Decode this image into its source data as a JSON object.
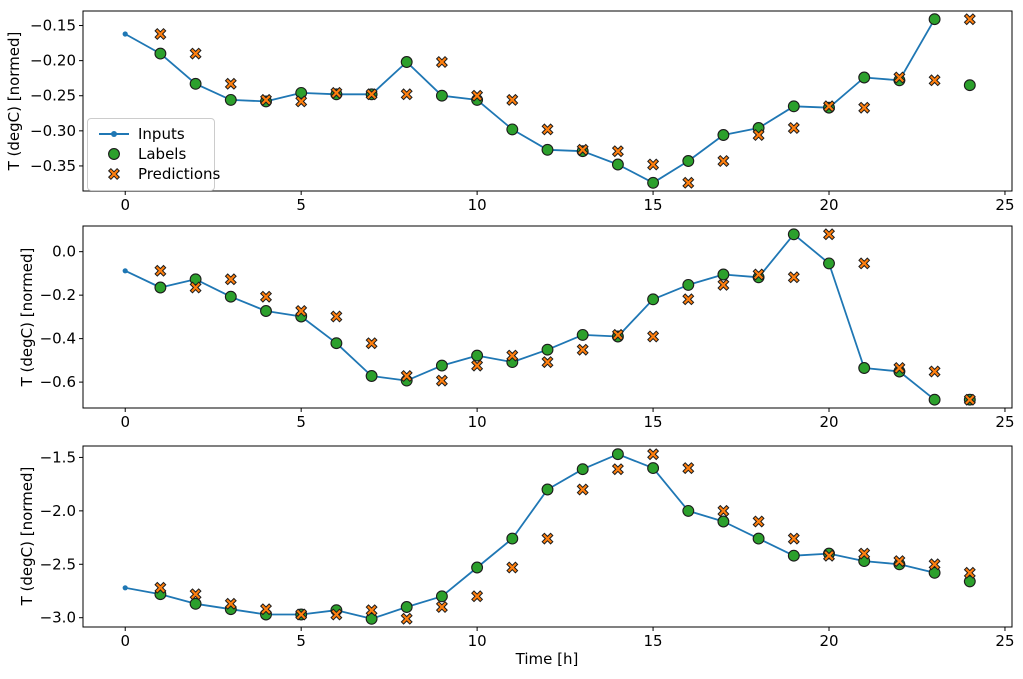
{
  "figure_title": "",
  "legend": {
    "position": "upper-left-of-first-subplot",
    "entries": [
      {
        "label": "Inputs",
        "marker": "line-with-dot",
        "color": "#1f77b4"
      },
      {
        "label": "Labels",
        "marker": "circle",
        "color": "#2ca02c",
        "edge_color": "#000000"
      },
      {
        "label": "Predictions",
        "marker": "x-cross",
        "color": "#ff7f0e",
        "edge_color": "#000000"
      }
    ]
  },
  "colors": {
    "inputs_line": "#1f77b4",
    "labels_marker": "#2ca02c",
    "predictions_marker": "#ff7f0e",
    "marker_edge": "#1c1c1c",
    "axes": "#000000"
  },
  "chart_data": [
    {
      "type": "line",
      "title": "",
      "xlabel": "",
      "ylabel": "T (degC) [normed]",
      "xlim": [
        -1.2,
        25.2
      ],
      "ylim": [
        -0.3857,
        -0.1293
      ],
      "grid": false,
      "xticks": {
        "values": [
          0,
          5,
          10,
          15,
          20,
          25
        ],
        "labels": [
          "0",
          "5",
          "10",
          "15",
          "20",
          "25"
        ]
      },
      "yticks": {
        "values": [
          -0.15,
          -0.2,
          -0.25,
          -0.3,
          -0.35
        ],
        "labels": [
          "−0.15",
          "−0.20",
          "−0.25",
          "−0.30",
          "−0.35"
        ]
      },
      "series": [
        {
          "name": "Inputs",
          "style": "line-with-dots",
          "color": "#1f77b4",
          "x": [
            0,
            1,
            2,
            3,
            4,
            5,
            6,
            7,
            8,
            9,
            10,
            11,
            12,
            13,
            14,
            15,
            16,
            17,
            18,
            19,
            20,
            21,
            22,
            23
          ],
          "y": [
            -0.162,
            -0.19,
            -0.233,
            -0.256,
            -0.258,
            -0.246,
            -0.248,
            -0.248,
            -0.202,
            -0.25,
            -0.256,
            -0.298,
            -0.327,
            -0.329,
            -0.348,
            -0.374,
            -0.343,
            -0.306,
            -0.296,
            -0.265,
            -0.267,
            -0.224,
            -0.228,
            -0.141
          ]
        },
        {
          "name": "Labels",
          "style": "scatter-circle",
          "color": "#2ca02c",
          "x": [
            1,
            2,
            3,
            4,
            5,
            6,
            7,
            8,
            9,
            10,
            11,
            12,
            13,
            14,
            15,
            16,
            17,
            18,
            19,
            20,
            21,
            22,
            23,
            24
          ],
          "y": [
            -0.19,
            -0.233,
            -0.256,
            -0.258,
            -0.246,
            -0.248,
            -0.248,
            -0.202,
            -0.25,
            -0.256,
            -0.298,
            -0.327,
            -0.329,
            -0.348,
            -0.374,
            -0.343,
            -0.306,
            -0.296,
            -0.265,
            -0.267,
            -0.224,
            -0.228,
            -0.141,
            -0.235
          ]
        },
        {
          "name": "Predictions",
          "style": "scatter-x",
          "color": "#ff7f0e",
          "x": [
            1,
            2,
            3,
            4,
            5,
            6,
            7,
            8,
            9,
            10,
            11,
            12,
            13,
            14,
            15,
            16,
            17,
            18,
            19,
            20,
            21,
            22,
            23,
            24
          ],
          "y": [
            -0.162,
            -0.19,
            -0.233,
            -0.256,
            -0.258,
            -0.246,
            -0.248,
            -0.248,
            -0.202,
            -0.25,
            -0.256,
            -0.298,
            -0.327,
            -0.329,
            -0.348,
            -0.374,
            -0.343,
            -0.306,
            -0.296,
            -0.265,
            -0.267,
            -0.224,
            -0.228,
            -0.141
          ]
        }
      ]
    },
    {
      "type": "line",
      "title": "",
      "xlabel": "",
      "ylabel": "T (degC) [normed]",
      "xlim": [
        -1.2,
        25.2
      ],
      "ylim": [
        -0.7191,
        0.1181
      ],
      "grid": false,
      "xticks": {
        "values": [
          0,
          5,
          10,
          15,
          20,
          25
        ],
        "labels": [
          "0",
          "5",
          "10",
          "15",
          "20",
          "25"
        ]
      },
      "yticks": {
        "values": [
          0.0,
          -0.2,
          -0.4,
          -0.6
        ],
        "labels": [
          "0.0",
          "−0.2",
          "−0.4",
          "−0.6"
        ]
      },
      "series": [
        {
          "name": "Inputs",
          "style": "line-with-dots",
          "color": "#1f77b4",
          "x": [
            0,
            1,
            2,
            3,
            4,
            5,
            6,
            7,
            8,
            9,
            10,
            11,
            12,
            13,
            14,
            15,
            16,
            17,
            18,
            19,
            20,
            21,
            22,
            23
          ],
          "y": [
            -0.088,
            -0.165,
            -0.127,
            -0.207,
            -0.273,
            -0.298,
            -0.421,
            -0.572,
            -0.593,
            -0.524,
            -0.478,
            -0.508,
            -0.451,
            -0.383,
            -0.39,
            -0.219,
            -0.153,
            -0.105,
            -0.118,
            0.08,
            -0.054,
            -0.535,
            -0.551,
            -0.681
          ]
        },
        {
          "name": "Labels",
          "style": "scatter-circle",
          "color": "#2ca02c",
          "x": [
            1,
            2,
            3,
            4,
            5,
            6,
            7,
            8,
            9,
            10,
            11,
            12,
            13,
            14,
            15,
            16,
            17,
            18,
            19,
            20,
            21,
            22,
            23,
            24
          ],
          "y": [
            -0.165,
            -0.127,
            -0.207,
            -0.273,
            -0.298,
            -0.421,
            -0.572,
            -0.593,
            -0.524,
            -0.478,
            -0.508,
            -0.451,
            -0.383,
            -0.39,
            -0.219,
            -0.153,
            -0.105,
            -0.118,
            0.08,
            -0.054,
            -0.535,
            -0.551,
            -0.681,
            -0.681
          ]
        },
        {
          "name": "Predictions",
          "style": "scatter-x",
          "color": "#ff7f0e",
          "x": [
            1,
            2,
            3,
            4,
            5,
            6,
            7,
            8,
            9,
            10,
            11,
            12,
            13,
            14,
            15,
            16,
            17,
            18,
            19,
            20,
            21,
            22,
            23,
            24
          ],
          "y": [
            -0.088,
            -0.165,
            -0.127,
            -0.207,
            -0.273,
            -0.298,
            -0.421,
            -0.572,
            -0.593,
            -0.524,
            -0.478,
            -0.508,
            -0.451,
            -0.383,
            -0.39,
            -0.219,
            -0.153,
            -0.105,
            -0.118,
            0.08,
            -0.054,
            -0.535,
            -0.551,
            -0.681
          ]
        }
      ]
    },
    {
      "type": "line",
      "title": "",
      "xlabel": "Time [h]",
      "ylabel": "T (degC) [normed]",
      "xlim": [
        -1.2,
        25.2
      ],
      "ylim": [
        -3.087,
        -1.393
      ],
      "grid": false,
      "xticks": {
        "values": [
          0,
          5,
          10,
          15,
          20,
          25
        ],
        "labels": [
          "0",
          "5",
          "10",
          "15",
          "20",
          "25"
        ]
      },
      "yticks": {
        "values": [
          -1.5,
          -2.0,
          -2.5,
          -3.0
        ],
        "labels": [
          "−1.5",
          "−2.0",
          "−2.5",
          "−3.0"
        ]
      },
      "series": [
        {
          "name": "Inputs",
          "style": "line-with-dots",
          "color": "#1f77b4",
          "x": [
            0,
            1,
            2,
            3,
            4,
            5,
            6,
            7,
            8,
            9,
            10,
            11,
            12,
            13,
            14,
            15,
            16,
            17,
            18,
            19,
            20,
            21,
            22,
            23
          ],
          "y": [
            -2.72,
            -2.78,
            -2.87,
            -2.92,
            -2.97,
            -2.97,
            -2.93,
            -3.01,
            -2.9,
            -2.8,
            -2.53,
            -2.26,
            -1.8,
            -1.61,
            -1.47,
            -1.6,
            -2.0,
            -2.1,
            -2.26,
            -2.42,
            -2.4,
            -2.47,
            -2.5,
            -2.58
          ]
        },
        {
          "name": "Labels",
          "style": "scatter-circle",
          "color": "#2ca02c",
          "x": [
            1,
            2,
            3,
            4,
            5,
            6,
            7,
            8,
            9,
            10,
            11,
            12,
            13,
            14,
            15,
            16,
            17,
            18,
            19,
            20,
            21,
            22,
            23,
            24
          ],
          "y": [
            -2.78,
            -2.87,
            -2.92,
            -2.97,
            -2.97,
            -2.93,
            -3.01,
            -2.9,
            -2.8,
            -2.53,
            -2.26,
            -1.8,
            -1.61,
            -1.47,
            -1.6,
            -2.0,
            -2.1,
            -2.26,
            -2.42,
            -2.4,
            -2.47,
            -2.5,
            -2.58,
            -2.66
          ]
        },
        {
          "name": "Predictions",
          "style": "scatter-x",
          "color": "#ff7f0e",
          "x": [
            1,
            2,
            3,
            4,
            5,
            6,
            7,
            8,
            9,
            10,
            11,
            12,
            13,
            14,
            15,
            16,
            17,
            18,
            19,
            20,
            21,
            22,
            23,
            24
          ],
          "y": [
            -2.72,
            -2.78,
            -2.87,
            -2.92,
            -2.97,
            -2.97,
            -2.93,
            -3.01,
            -2.9,
            -2.8,
            -2.53,
            -2.26,
            -1.8,
            -1.61,
            -1.47,
            -1.6,
            -2.0,
            -2.1,
            -2.26,
            -2.42,
            -2.4,
            -2.47,
            -2.5,
            -2.58
          ]
        }
      ]
    }
  ]
}
